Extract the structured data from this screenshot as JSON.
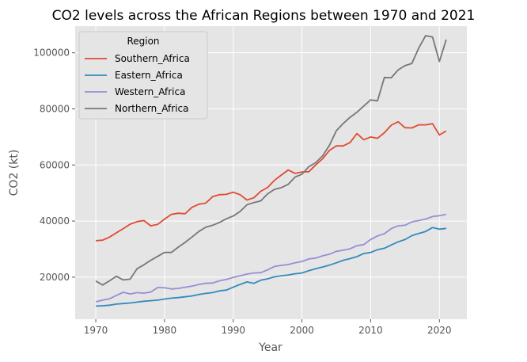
{
  "chart_data": {
    "type": "line",
    "title": "CO2 levels across the African Regions between 1970 and 2021",
    "xlabel": "Year",
    "ylabel": "CO2 (kt)",
    "xlim": [
      1967,
      2024
    ],
    "ylim": [
      5000,
      109500
    ],
    "x_ticks": [
      1970,
      1980,
      1990,
      2000,
      2010,
      2020
    ],
    "y_ticks": [
      20000,
      40000,
      60000,
      80000,
      100000
    ],
    "grid": true,
    "legend_title": "Region",
    "legend_position": "upper-left",
    "x": [
      1970,
      1971,
      1972,
      1973,
      1974,
      1975,
      1976,
      1977,
      1978,
      1979,
      1980,
      1981,
      1982,
      1983,
      1984,
      1985,
      1986,
      1987,
      1988,
      1989,
      1990,
      1991,
      1992,
      1993,
      1994,
      1995,
      1996,
      1997,
      1998,
      1999,
      2000,
      2001,
      2002,
      2003,
      2004,
      2005,
      2006,
      2007,
      2008,
      2009,
      2010,
      2011,
      2012,
      2013,
      2014,
      2015,
      2016,
      2017,
      2018,
      2019,
      2020,
      2021
    ],
    "series": [
      {
        "name": "Southern_Africa",
        "color": "#E24A33",
        "values": [
          33000,
          33200,
          34300,
          35800,
          37300,
          38900,
          39800,
          40200,
          38300,
          38800,
          40700,
          42400,
          42800,
          42600,
          44900,
          46000,
          46400,
          48700,
          49400,
          49500,
          50300,
          49400,
          47500,
          48300,
          50600,
          52000,
          54500,
          56400,
          58200,
          57000,
          57500,
          57600,
          60000,
          62200,
          65200,
          66800,
          66800,
          68000,
          71200,
          69000,
          70000,
          69500,
          71500,
          74200,
          75400,
          73300,
          73200,
          74300,
          74300,
          74700,
          70700,
          72100
        ]
      },
      {
        "name": "Eastern_Africa",
        "color": "#348ABD",
        "values": [
          9700,
          9800,
          10000,
          10400,
          10600,
          10800,
          11100,
          11400,
          11600,
          11800,
          12200,
          12500,
          12700,
          13000,
          13300,
          13800,
          14200,
          14500,
          15100,
          15400,
          16400,
          17400,
          18300,
          17800,
          18900,
          19400,
          20100,
          20500,
          20800,
          21200,
          21500,
          22300,
          23000,
          23600,
          24300,
          25100,
          26000,
          26600,
          27300,
          28400,
          28800,
          29800,
          30300,
          31500,
          32600,
          33400,
          34800,
          35600,
          36300,
          37700,
          37100,
          37400
        ]
      },
      {
        "name": "Western_Africa",
        "color": "#988ED5",
        "values": [
          11200,
          11800,
          12300,
          13500,
          14600,
          14000,
          14500,
          14300,
          14700,
          16300,
          16200,
          15800,
          16000,
          16400,
          16800,
          17400,
          17800,
          17900,
          18700,
          19200,
          19900,
          20500,
          21100,
          21500,
          21600,
          22600,
          23800,
          24200,
          24500,
          25100,
          25600,
          26500,
          26800,
          27600,
          28200,
          29200,
          29600,
          30100,
          31200,
          31600,
          33400,
          34700,
          35500,
          37300,
          38300,
          38500,
          39700,
          40200,
          40700,
          41600,
          41900,
          42400
        ]
      },
      {
        "name": "Northern_Africa",
        "color": "#777777",
        "values": [
          18600,
          17200,
          18700,
          20300,
          19000,
          19300,
          23000,
          24400,
          26000,
          27400,
          28800,
          28800,
          30700,
          32400,
          34300,
          36300,
          37800,
          38500,
          39500,
          40800,
          41800,
          43400,
          45800,
          46600,
          47200,
          49700,
          51300,
          51900,
          53100,
          55700,
          56700,
          59400,
          60800,
          63200,
          67000,
          72200,
          74800,
          77000,
          78800,
          81000,
          83200,
          82900,
          91200,
          91100,
          93900,
          95400,
          96200,
          101700,
          106100,
          105600,
          96900,
          104700
        ]
      }
    ]
  }
}
